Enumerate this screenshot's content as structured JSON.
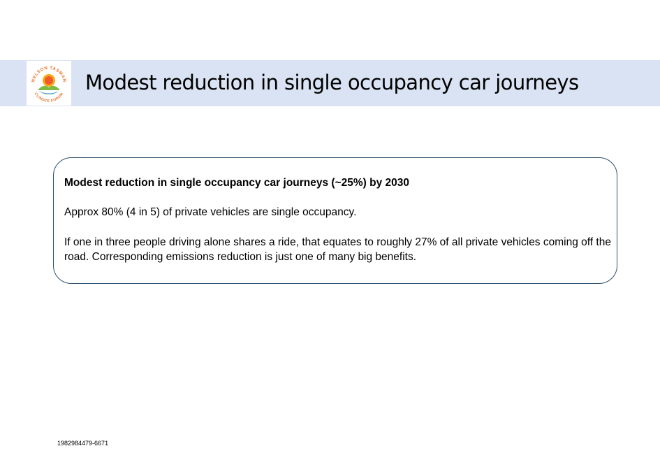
{
  "header": {
    "title": "Modest reduction in single occupancy car journeys",
    "logo": {
      "icon": "nelson-tasman-climate-forum-logo",
      "text_top": "NELSON TASMAN",
      "text_bottom": "CLIMATE FORUM",
      "colors": {
        "sun": "#f7a81b",
        "sun_core": "#f05a28",
        "hill_green": "#7dbb42",
        "hill_blue": "#4aa3c9",
        "lettering": "#e8752b"
      }
    },
    "band_color": "#dae3f3"
  },
  "card": {
    "heading": "Modest reduction in single occupancy car journeys (~25%) by 2030",
    "paragraph_1": "Approx 80% (4 in 5) of private vehicles are single occupancy.",
    "paragraph_2": "If one in three people driving alone shares a ride, that equates to roughly 27% of all private vehicles coming off the road. Corresponding emissions reduction is just one of many big benefits.",
    "border_color": "#2f4f6f"
  },
  "footer": {
    "document_id": "1982984479-6671"
  }
}
